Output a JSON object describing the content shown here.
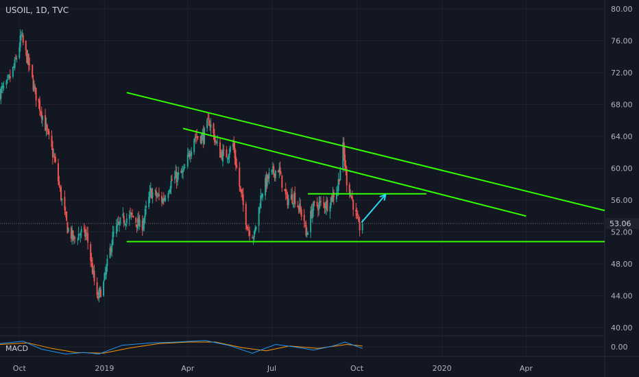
{
  "header": {
    "symbol": "USOIL, 1D, TVC"
  },
  "macd": {
    "label": "MACD",
    "axis_label": "0.00"
  },
  "colors": {
    "background": "#131722",
    "grid": "#1f2330",
    "up": "#26a69a",
    "down": "#ef5350",
    "trendline": "#33ff00",
    "arrow": "#29d9f0",
    "axis_text": "#b2b5be",
    "price_badge": "#1e222d",
    "macd_line": "#2196f3",
    "signal_line": "#ff9800"
  },
  "chart_data": {
    "type": "candlestick",
    "ylim": [
      38,
      82
    ],
    "xlim": [
      "2018-09-10",
      "2020-06-25"
    ],
    "yticks": [
      "80.00",
      "76.00",
      "72.00",
      "68.00",
      "64.00",
      "60.00",
      "56.00",
      "52.00",
      "48.00",
      "44.00",
      "40.00"
    ],
    "xticks": [
      {
        "label": "Oct",
        "date": "2018-10-01"
      },
      {
        "label": "2019",
        "date": "2019-01-01"
      },
      {
        "label": "Apr",
        "date": "2019-04-01"
      },
      {
        "label": "Jul",
        "date": "2019-07-01"
      },
      {
        "label": "Oct",
        "date": "2019-10-01"
      },
      {
        "label": "2020",
        "date": "2020-01-01"
      },
      {
        "label": "Apr",
        "date": "2020-04-01"
      }
    ],
    "last_price": "53.06",
    "close_path": [
      [
        "2018-09-10",
        69.5
      ],
      [
        "2018-09-18",
        70.5
      ],
      [
        "2018-09-26",
        73.0
      ],
      [
        "2018-10-03",
        76.5
      ],
      [
        "2018-10-10",
        73.5
      ],
      [
        "2018-10-18",
        69.5
      ],
      [
        "2018-10-25",
        67.0
      ],
      [
        "2018-11-01",
        64.0
      ],
      [
        "2018-11-08",
        61.0
      ],
      [
        "2018-11-15",
        56.5
      ],
      [
        "2018-11-22",
        52.5
      ],
      [
        "2018-11-29",
        51.0
      ],
      [
        "2018-12-06",
        52.0
      ],
      [
        "2018-12-13",
        51.5
      ],
      [
        "2018-12-20",
        46.5
      ],
      [
        "2018-12-24",
        43.5
      ],
      [
        "2018-12-31",
        45.5
      ],
      [
        "2019-01-10",
        51.5
      ],
      [
        "2019-01-20",
        53.5
      ],
      [
        "2019-01-31",
        54.0
      ],
      [
        "2019-02-10",
        52.5
      ],
      [
        "2019-02-20",
        57.0
      ],
      [
        "2019-03-05",
        56.0
      ],
      [
        "2019-03-15",
        58.5
      ],
      [
        "2019-03-28",
        59.5
      ],
      [
        "2019-04-08",
        64.0
      ],
      [
        "2019-04-18",
        64.0
      ],
      [
        "2019-04-24",
        66.0
      ],
      [
        "2019-05-05",
        62.0
      ],
      [
        "2019-05-12",
        61.5
      ],
      [
        "2019-05-20",
        63.0
      ],
      [
        "2019-05-28",
        57.0
      ],
      [
        "2019-06-05",
        52.5
      ],
      [
        "2019-06-12",
        51.5
      ],
      [
        "2019-06-20",
        57.0
      ],
      [
        "2019-06-28",
        59.0
      ],
      [
        "2019-07-08",
        60.0
      ],
      [
        "2019-07-17",
        56.0
      ],
      [
        "2019-07-25",
        56.5
      ],
      [
        "2019-08-05",
        53.5
      ],
      [
        "2019-08-07",
        51.5
      ],
      [
        "2019-08-14",
        55.0
      ],
      [
        "2019-08-22",
        55.5
      ],
      [
        "2019-08-30",
        55.5
      ],
      [
        "2019-09-10",
        57.5
      ],
      [
        "2019-09-16",
        62.5
      ],
      [
        "2019-09-20",
        58.5
      ],
      [
        "2019-09-26",
        56.0
      ],
      [
        "2019-10-01",
        53.5
      ],
      [
        "2019-10-03",
        52.5
      ],
      [
        "2019-10-07",
        53.06
      ]
    ],
    "trendlines": [
      {
        "from": [
          "2019-01-25",
          69.5
        ],
        "to": [
          "2020-06-25",
          54.7
        ]
      },
      {
        "from": [
          "2019-03-27",
          65.0
        ],
        "to": [
          "2020-04-01",
          54.0
        ]
      },
      {
        "from": [
          "2019-01-25",
          50.8
        ],
        "to": [
          "2020-06-25",
          50.8
        ]
      },
      {
        "from": [
          "2019-08-09",
          56.8
        ],
        "to": [
          "2019-12-15",
          56.8
        ]
      }
    ],
    "arrow": {
      "from": [
        "2019-10-06",
        53.2
      ],
      "to": [
        "2019-11-01",
        56.7
      ]
    },
    "macd": {
      "ylim": [
        -1.2,
        1.2
      ],
      "macd_line": [
        [
          "2018-09-10",
          0.4
        ],
        [
          "2018-10-05",
          0.7
        ],
        [
          "2018-10-25",
          -0.3
        ],
        [
          "2018-11-20",
          -0.9
        ],
        [
          "2018-12-10",
          -0.7
        ],
        [
          "2018-12-26",
          -0.9
        ],
        [
          "2019-01-20",
          0.2
        ],
        [
          "2019-02-20",
          0.5
        ],
        [
          "2019-03-20",
          0.6
        ],
        [
          "2019-04-20",
          0.8
        ],
        [
          "2019-05-15",
          0.2
        ],
        [
          "2019-06-10",
          -0.8
        ],
        [
          "2019-07-05",
          0.3
        ],
        [
          "2019-07-25",
          0.0
        ],
        [
          "2019-08-15",
          -0.4
        ],
        [
          "2019-09-05",
          0.1
        ],
        [
          "2019-09-18",
          0.6
        ],
        [
          "2019-10-07",
          -0.2
        ]
      ],
      "signal_line": [
        [
          "2018-09-10",
          0.3
        ],
        [
          "2018-10-10",
          0.5
        ],
        [
          "2018-11-05",
          -0.2
        ],
        [
          "2018-12-01",
          -0.7
        ],
        [
          "2018-12-31",
          -0.8
        ],
        [
          "2019-01-30",
          -0.1
        ],
        [
          "2019-03-01",
          0.4
        ],
        [
          "2019-04-01",
          0.6
        ],
        [
          "2019-05-01",
          0.6
        ],
        [
          "2019-05-30",
          -0.1
        ],
        [
          "2019-06-25",
          -0.5
        ],
        [
          "2019-07-20",
          0.1
        ],
        [
          "2019-08-20",
          -0.2
        ],
        [
          "2019-09-20",
          0.3
        ],
        [
          "2019-10-07",
          0.1
        ]
      ]
    }
  }
}
